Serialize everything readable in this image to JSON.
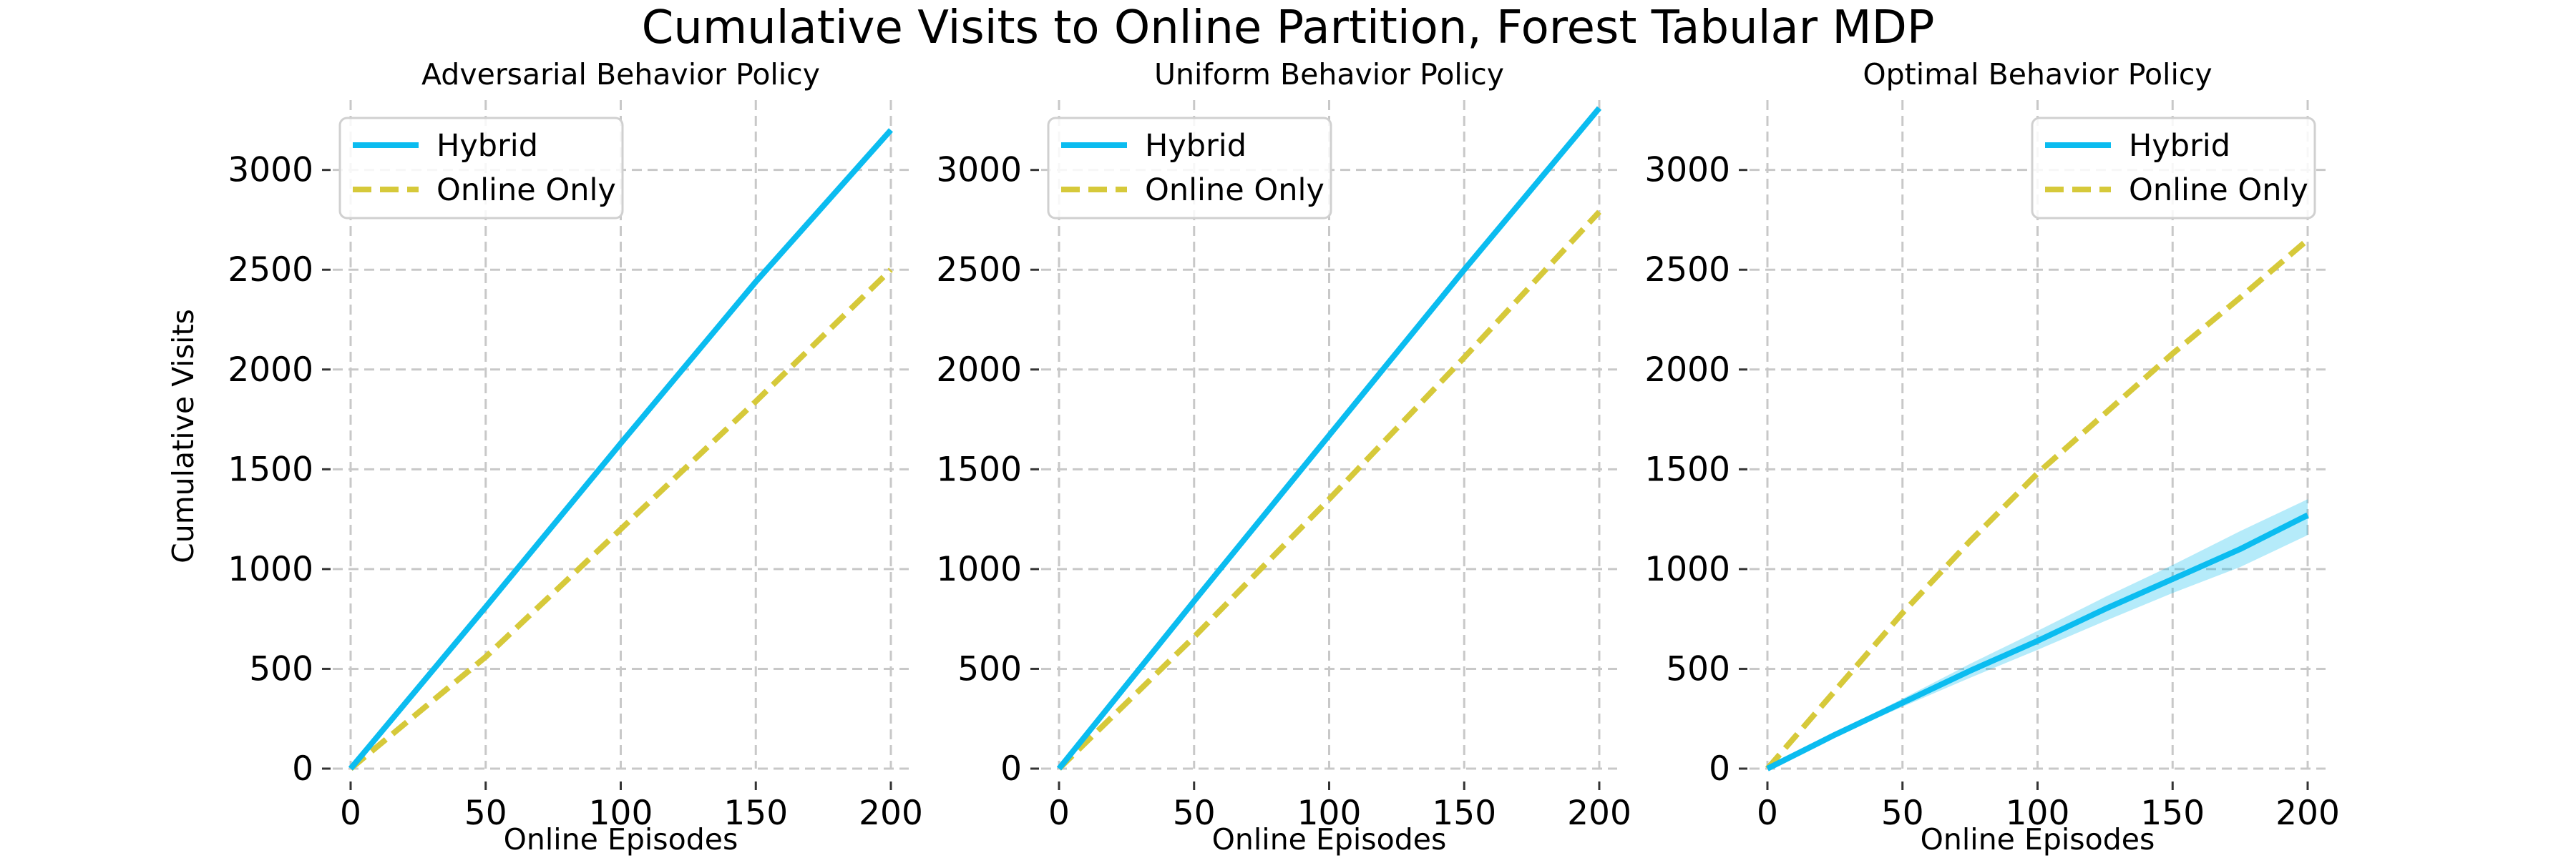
{
  "chart_data": {
    "title": "Cumulative Visits to Online Partition, Forest Tabular MDP",
    "ylabel": "Cumulative Visits",
    "xlabel": "Online Episodes",
    "xlim": [
      0,
      200
    ],
    "ylim": [
      0,
      3350
    ],
    "xticks": [
      0,
      50,
      100,
      150,
      200
    ],
    "yticks": [
      0,
      500,
      1000,
      1500,
      2000,
      2500,
      3000
    ],
    "grid": true,
    "panels": [
      {
        "type": "line",
        "title": "Adversarial Behavior Policy",
        "legend_position": "top-left",
        "show_ylabel": true,
        "series": [
          {
            "name": "Hybrid",
            "style": "solid",
            "color": "#0bbcf0",
            "x": [
              0,
              50,
              100,
              150,
              200
            ],
            "y": [
              0,
              810,
              1630,
              2440,
              3200
            ]
          },
          {
            "name": "Online Only",
            "style": "dashed",
            "color": "#d6c93a",
            "x": [
              0,
              50,
              100,
              150,
              200
            ],
            "y": [
              0,
              560,
              1200,
              1840,
              2500
            ]
          }
        ]
      },
      {
        "type": "line",
        "title": "Uniform Behavior Policy",
        "legend_position": "top-left",
        "show_ylabel": false,
        "series": [
          {
            "name": "Hybrid",
            "style": "solid",
            "color": "#0bbcf0",
            "x": [
              0,
              50,
              100,
              150,
              200
            ],
            "y": [
              0,
              840,
              1670,
              2500,
              3310
            ]
          },
          {
            "name": "Online Only",
            "style": "dashed",
            "color": "#d6c93a",
            "x": [
              0,
              50,
              100,
              150,
              200
            ],
            "y": [
              0,
              660,
              1350,
              2060,
              2790
            ]
          }
        ]
      },
      {
        "type": "line",
        "title": "Optimal Behavior Policy",
        "legend_position": "top-right",
        "show_ylabel": false,
        "series": [
          {
            "name": "Hybrid",
            "style": "solid",
            "color": "#0bbcf0",
            "x": [
              0,
              25,
              50,
              75,
              100,
              125,
              150,
              175,
              200
            ],
            "y": [
              0,
              170,
              330,
              490,
              640,
              800,
              950,
              1100,
              1270
            ],
            "band_low": [
              0,
              160,
              310,
              455,
              595,
              740,
              880,
              1010,
              1170
            ],
            "band_high": [
              0,
              180,
              350,
              525,
              690,
              860,
              1020,
              1190,
              1350
            ]
          },
          {
            "name": "Online Only",
            "style": "dashed",
            "color": "#d6c93a",
            "x": [
              0,
              25,
              50,
              75,
              100,
              125,
              150,
              175,
              200
            ],
            "y": [
              0,
              390,
              780,
              1140,
              1480,
              1780,
              2080,
              2360,
              2650
            ]
          }
        ]
      }
    ]
  }
}
